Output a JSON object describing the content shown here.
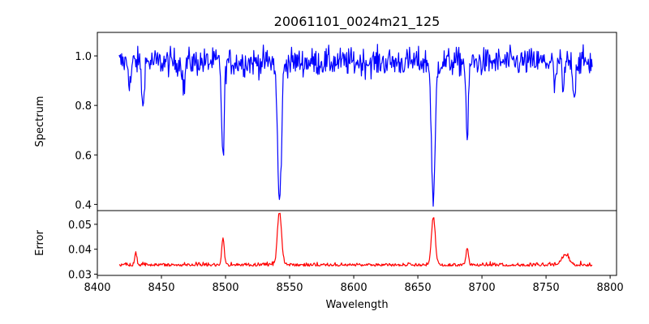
{
  "chart_data": [
    {
      "type": "line",
      "title": "20061101_0024m21_125",
      "xlabel": "",
      "ylabel": "Spectrum",
      "xlim": [
        8400,
        8805
      ],
      "ylim": [
        0.375,
        1.095
      ],
      "yticks": [
        0.4,
        0.6,
        0.8,
        1.0
      ],
      "ytick_labels": [
        "0.4",
        "0.6",
        "0.8",
        "1.0"
      ],
      "grid": false,
      "series": [
        {
          "color": "#0000ff",
          "x_range": [
            8417,
            8786
          ],
          "baseline": 0.975,
          "features": [
            {
              "center": 8425.5,
              "depth": 0.09,
              "width": 0.9
            },
            {
              "center": 8435.5,
              "depth": 0.2,
              "width": 0.8
            },
            {
              "center": 8467.5,
              "depth": 0.12,
              "width": 0.8
            },
            {
              "center": 8498.0,
              "depth": 0.4,
              "width": 1.0
            },
            {
              "center": 8542.1,
              "depth": 0.57,
              "width": 1.5
            },
            {
              "center": 8662.1,
              "depth": 0.58,
              "width": 1.4
            },
            {
              "center": 8688.6,
              "depth": 0.32,
              "width": 0.9
            },
            {
              "center": 8757.0,
              "depth": 0.12,
              "width": 0.8
            },
            {
              "center": 8763.5,
              "depth": 0.13,
              "width": 0.8
            },
            {
              "center": 8772.0,
              "depth": 0.15,
              "width": 0.8
            }
          ]
        }
      ]
    },
    {
      "type": "line",
      "title": "",
      "xlabel": "Wavelength",
      "ylabel": "Error",
      "xlim": [
        8400,
        8805
      ],
      "ylim": [
        0.0295,
        0.0555
      ],
      "yticks": [
        0.03,
        0.04,
        0.05
      ],
      "ytick_labels": [
        "0.03",
        "0.04",
        "0.05"
      ],
      "xticks": [
        8400,
        8450,
        8500,
        8550,
        8600,
        8650,
        8700,
        8750,
        8800
      ],
      "xtick_labels": [
        "8400",
        "8450",
        "8500",
        "8550",
        "8600",
        "8650",
        "8700",
        "8750",
        "8800"
      ],
      "grid": false,
      "series": [
        {
          "color": "#ff0000",
          "x_range": [
            8417,
            8786
          ],
          "baseline": 0.0335,
          "features": [
            {
              "center": 8430.0,
              "height": 0.005,
              "width": 0.8
            },
            {
              "center": 8498.0,
              "height": 0.011,
              "width": 1.0
            },
            {
              "center": 8542.1,
              "height": 0.021,
              "width": 1.6
            },
            {
              "center": 8662.1,
              "height": 0.019,
              "width": 1.5
            },
            {
              "center": 8688.6,
              "height": 0.007,
              "width": 0.9
            },
            {
              "center": 8765.0,
              "height": 0.004,
              "width": 3.0
            }
          ]
        }
      ]
    }
  ]
}
